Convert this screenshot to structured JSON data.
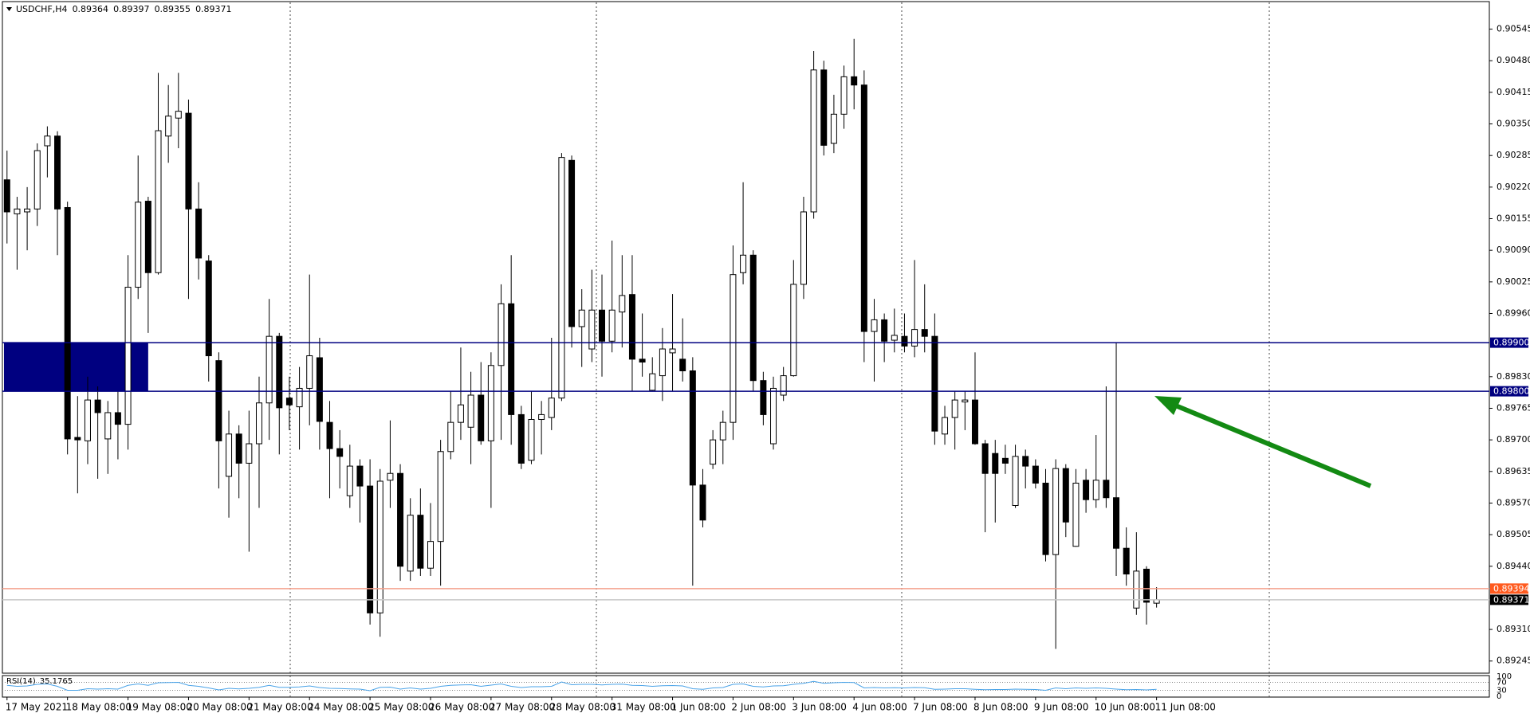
{
  "chart_data": {
    "type": "candlestick",
    "symbol": "USDCHF,H4",
    "open": [
      0.90235,
      0.90165,
      0.90169,
      0.90175,
      0.90305,
      0.90325,
      0.90178,
      0.89705,
      0.89698,
      0.89782,
      0.89702,
      0.89756,
      0.89732,
      0.90014,
      0.90191,
      0.90044,
      0.90325,
      0.90362,
      0.90372,
      0.90175,
      0.90068,
      0.89863,
      0.89625,
      0.89712,
      0.89652,
      0.89692,
      0.89776,
      0.89913,
      0.89786,
      0.89768,
      0.89806,
      0.89869,
      0.89736,
      0.89682,
      0.89585,
      0.89646,
      0.89605,
      0.89344,
      0.89617,
      0.89631,
      0.8943,
      0.89545,
      0.89436,
      0.89491,
      0.89676,
      0.89736,
      0.89726,
      0.89792,
      0.89698,
      0.89853,
      0.8998,
      0.89752,
      0.89658,
      0.89742,
      0.89746,
      0.89786,
      0.90275,
      0.89933,
      0.89887,
      0.89967,
      0.89903,
      0.89963,
      0.89999,
      0.89866,
      0.89802,
      0.89832,
      0.89879,
      0.89866,
      0.89842,
      0.89607,
      0.8965,
      0.897,
      0.89736,
      0.90044,
      0.9008,
      0.89822,
      0.89692,
      0.89792,
      0.89832,
      0.9002,
      0.90169,
      0.90461,
      0.9031,
      0.9037,
      0.90447,
      0.9043,
      0.89923,
      0.89947,
      0.89905,
      0.89913,
      0.89893,
      0.89927,
      0.89913,
      0.89712,
      0.89746,
      0.89778,
      0.89782,
      0.89692,
      0.89672,
      0.89662,
      0.89565,
      0.89666,
      0.89646,
      0.89611,
      0.89464,
      0.89641,
      0.89481,
      0.89617,
      0.89577,
      0.89617,
      0.89581,
      0.89477,
      0.89354,
      0.89434,
      0.89364
    ],
    "high": [
      0.90295,
      0.902,
      0.9022,
      0.9031,
      0.90345,
      0.90335,
      0.9019,
      0.8979,
      0.8983,
      0.8981,
      0.8978,
      0.898,
      0.9008,
      0.90285,
      0.902,
      0.90455,
      0.9043,
      0.90455,
      0.904,
      0.9023,
      0.9008,
      0.8988,
      0.8976,
      0.8973,
      0.8976,
      0.8983,
      0.8999,
      0.8992,
      0.8983,
      0.8985,
      0.9004,
      0.8991,
      0.8978,
      0.8972,
      0.8969,
      0.8966,
      0.8966,
      0.8964,
      0.8974,
      0.8965,
      0.8958,
      0.896,
      0.8957,
      0.897,
      0.898,
      0.8989,
      0.8984,
      0.8986,
      0.8988,
      0.9002,
      0.9008,
      0.8977,
      0.898,
      0.8978,
      0.8991,
      0.9029,
      0.90285,
      0.9001,
      0.9005,
      0.9004,
      0.9011,
      0.9008,
      0.9008,
      0.8996,
      0.8987,
      0.8993,
      0.9,
      0.8995,
      0.8987,
      0.8964,
      0.8972,
      0.8976,
      0.901,
      0.9023,
      0.9009,
      0.8984,
      0.8983,
      0.8985,
      0.9007,
      0.902,
      0.905,
      0.9048,
      0.9041,
      0.9047,
      0.90525,
      0.9046,
      0.8999,
      0.8996,
      0.8997,
      0.8996,
      0.9007,
      0.9002,
      0.8996,
      0.8977,
      0.898,
      0.898,
      0.8988,
      0.897,
      0.897,
      0.8969,
      0.8969,
      0.8968,
      0.8966,
      0.8964,
      0.8966,
      0.8965,
      0.8964,
      0.8964,
      0.8971,
      0.8981,
      0.899,
      0.8952,
      0.8951,
      0.8944,
      0.89397
    ],
    "low": [
      0.90104,
      0.9005,
      0.9009,
      0.9014,
      0.9024,
      0.9008,
      0.8967,
      0.8959,
      0.8965,
      0.8962,
      0.8963,
      0.8966,
      0.8968,
      0.8999,
      0.8992,
      0.9004,
      0.9027,
      0.903,
      0.8999,
      0.9003,
      0.8982,
      0.896,
      0.8954,
      0.8958,
      0.8947,
      0.8956,
      0.897,
      0.8967,
      0.8972,
      0.8968,
      0.8973,
      0.8968,
      0.8958,
      0.896,
      0.8956,
      0.8953,
      0.8932,
      0.89295,
      0.8956,
      0.8941,
      0.8941,
      0.8942,
      0.8942,
      0.894,
      0.8966,
      0.897,
      0.8965,
      0.8969,
      0.8956,
      0.897,
      0.8969,
      0.8964,
      0.8965,
      0.8967,
      0.8972,
      0.8978,
      0.8989,
      0.8985,
      0.8986,
      0.8983,
      0.8988,
      0.8989,
      0.898,
      0.8983,
      0.898,
      0.8978,
      0.898,
      0.8982,
      0.894,
      0.8952,
      0.8964,
      0.8965,
      0.897,
      0.9002,
      0.898,
      0.8973,
      0.8968,
      0.8978,
      0.8983,
      0.8999,
      0.90155,
      0.90285,
      0.9029,
      0.9034,
      0.9038,
      0.8986,
      0.8982,
      0.8986,
      0.8988,
      0.8988,
      0.8987,
      0.8988,
      0.8969,
      0.8969,
      0.8968,
      0.8972,
      0.8969,
      0.8951,
      0.8953,
      0.8963,
      0.8956,
      0.896,
      0.896,
      0.8945,
      0.8927,
      0.895,
      0.8948,
      0.8955,
      0.8956,
      0.8956,
      0.8942,
      0.894,
      0.8934,
      0.8932,
      0.89355
    ],
    "close": [
      0.90169,
      0.90175,
      0.90175,
      0.90295,
      0.90325,
      0.90175,
      0.89702,
      0.897,
      0.89782,
      0.89756,
      0.89756,
      0.89732,
      0.90014,
      0.90189,
      0.90044,
      0.90336,
      0.90366,
      0.90376,
      0.90175,
      0.90074,
      0.89873,
      0.89698,
      0.89712,
      0.89652,
      0.89692,
      0.89776,
      0.89913,
      0.89766,
      0.89772,
      0.89806,
      0.89873,
      0.89738,
      0.89682,
      0.89666,
      0.89646,
      0.89605,
      0.89344,
      0.89615,
      0.89631,
      0.8944,
      0.89545,
      0.89436,
      0.89491,
      0.89676,
      0.89736,
      0.89772,
      0.89792,
      0.89698,
      0.89853,
      0.8998,
      0.89752,
      0.89652,
      0.89742,
      0.89752,
      0.89786,
      0.90281,
      0.89933,
      0.89967,
      0.89967,
      0.89903,
      0.89967,
      0.89997,
      0.89866,
      0.8986,
      0.89836,
      0.89887,
      0.89887,
      0.89842,
      0.89607,
      0.89535,
      0.897,
      0.89736,
      0.9004,
      0.9008,
      0.89822,
      0.89752,
      0.89806,
      0.89832,
      0.9002,
      0.90169,
      0.90461,
      0.90306,
      0.9037,
      0.90447,
      0.9043,
      0.89923,
      0.89947,
      0.89903,
      0.89915,
      0.89893,
      0.89927,
      0.89913,
      0.89718,
      0.89746,
      0.89782,
      0.89782,
      0.89692,
      0.89631,
      0.89631,
      0.89652,
      0.89666,
      0.89646,
      0.89611,
      0.89464,
      0.89641,
      0.89531,
      0.89611,
      0.89577,
      0.89617,
      0.89581,
      0.89477,
      0.89424,
      0.8943,
      0.89366,
      0.89371
    ],
    "up_color": "#ffffff",
    "down_color": "#000000",
    "wick_color": "#000000",
    "xlim": [
      -0.3,
      147
    ],
    "ylim": [
      0.8922,
      0.906
    ],
    "yticks": [
      0.90545,
      {
        "value": 0.9048,
        "label": "0.90480"
      },
      0.90415,
      {
        "value": 0.9035,
        "label": "0.90350"
      },
      0.90285,
      {
        "value": 0.9022,
        "label": "0.90220"
      },
      0.90155,
      {
        "value": 0.9009,
        "label": "0.90090"
      },
      0.90025,
      {
        "value": 0.8996,
        "label": "0.89960"
      },
      {
        "value": 0.8983,
        "label": "0.89830"
      },
      0.89765,
      {
        "value": 0.897,
        "label": "0.89700"
      },
      0.89635,
      {
        "value": 0.8957,
        "label": "0.89570"
      },
      0.89505,
      {
        "value": 0.8944,
        "label": "0.89440"
      },
      {
        "value": 0.8931,
        "label": "0.89310"
      },
      0.89245
    ],
    "xticks": [
      {
        "value": 0,
        "label": "17 May 2021"
      },
      {
        "value": 6,
        "label": "18 May 08:00"
      },
      {
        "value": 12,
        "label": "19 May 08:00"
      },
      {
        "value": 18,
        "label": "20 May 08:00"
      },
      {
        "value": 24,
        "label": "21 May 08:00"
      },
      {
        "value": 30,
        "label": "24 May 08:00"
      },
      {
        "value": 36,
        "label": "25 May 08:00"
      },
      {
        "value": 42,
        "label": "26 May 08:00"
      },
      {
        "value": 48,
        "label": "27 May 08:00"
      },
      {
        "value": 54,
        "label": "28 May 08:00"
      },
      {
        "value": 60,
        "label": "31 May 08:00"
      },
      {
        "value": 66,
        "label": "1 Jun 08:00"
      },
      {
        "value": 72,
        "label": "2 Jun 08:00"
      },
      {
        "value": 78,
        "label": "3 Jun 08:00"
      },
      {
        "value": 84,
        "label": "4 Jun 08:00"
      },
      {
        "value": 90,
        "label": "7 Jun 08:00"
      },
      {
        "value": 96,
        "label": "8 Jun 08:00"
      },
      {
        "value": 102,
        "label": "9 Jun 08:00"
      },
      {
        "value": 108,
        "label": "10 Jun 08:00"
      },
      {
        "value": 114,
        "label": "11 Jun 08:00"
      }
    ],
    "zones": [
      {
        "xlim": [
          -0.3,
          14
        ],
        "ylim": [
          0.898,
          0.899
        ],
        "color": "#000080"
      }
    ],
    "levels": [
      {
        "price": 0.899,
        "price_label": "0.89900",
        "color": "#000080",
        "line_color": "#000080"
      },
      {
        "price": 0.898,
        "price_label": "0.89800",
        "color": "#000080",
        "line_color": "#000080"
      },
      {
        "price": 0.89394,
        "color": "#ff5a1e",
        "line_color": "#f4a08c"
      },
      {
        "price": 0.89371,
        "color": "#000000",
        "line_color": "#c8c8c8"
      }
    ],
    "indicator": {
      "name": "RSI(14)",
      "color": "#4aa3e8",
      "ylim": [
        0,
        100
      ],
      "yticks": [
        0,
        30,
        70,
        100
      ],
      "values": [
        55,
        50,
        52,
        60,
        62,
        50,
        30,
        30,
        38,
        36,
        38,
        36,
        55,
        62,
        55,
        68,
        69,
        70,
        55,
        50,
        42,
        32,
        40,
        37,
        40,
        45,
        55,
        45,
        45,
        47,
        52,
        44,
        40,
        39,
        37,
        36,
        28,
        45,
        46,
        36,
        42,
        36,
        40,
        50,
        55,
        57,
        58,
        50,
        56,
        62,
        50,
        44,
        48,
        48,
        50,
        72,
        58,
        60,
        60,
        57,
        60,
        61,
        55,
        54,
        50,
        53,
        54,
        52,
        38,
        35,
        42,
        44,
        60,
        62,
        50,
        47,
        52,
        53,
        60,
        65,
        75,
        65,
        68,
        70,
        69,
        42,
        44,
        42,
        43,
        42,
        44,
        43,
        35,
        36,
        38,
        38,
        35,
        33,
        34,
        34,
        36,
        35,
        34,
        30,
        42,
        38,
        42,
        40,
        42,
        40,
        36,
        33,
        34,
        32,
        35.1765
      ]
    }
  }
}
